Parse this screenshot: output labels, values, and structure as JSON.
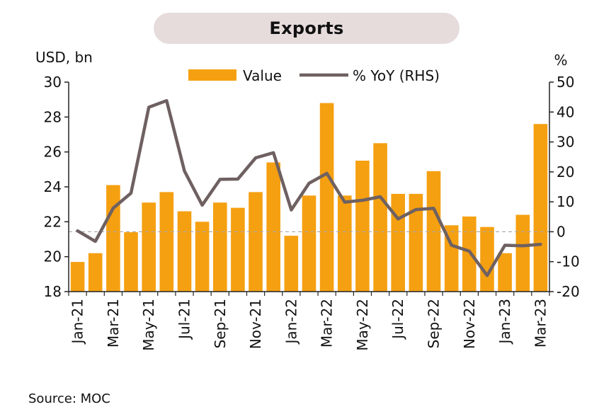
{
  "source": "Source: MOC",
  "colors": {
    "bar": "#f5a011",
    "line": "#6f6161",
    "zero_line": "#a8a8a8",
    "title_bg": "#e6dcdc"
  },
  "chart_data": {
    "type": "bar",
    "title": "Exports",
    "ylabel": "USD, bn",
    "y2label": "%",
    "ylim": [
      18,
      30
    ],
    "y2lim": [
      -20,
      50
    ],
    "yticks": [
      18,
      20,
      22,
      24,
      26,
      28,
      30
    ],
    "y2ticks": [
      -20,
      -10,
      0,
      10,
      20,
      30,
      40,
      50
    ],
    "legend_position": "top-center",
    "grid": false,
    "categories": [
      "Jan-21",
      "Feb-21",
      "Mar-21",
      "Apr-21",
      "May-21",
      "Jun-21",
      "Jul-21",
      "Aug-21",
      "Sep-21",
      "Oct-21",
      "Nov-21",
      "Dec-21",
      "Jan-22",
      "Feb-22",
      "Mar-22",
      "Apr-22",
      "May-22",
      "Jun-22",
      "Jul-22",
      "Aug-22",
      "Sep-22",
      "Oct-22",
      "Nov-22",
      "Dec-22",
      "Jan-23",
      "Feb-23",
      "Mar-23"
    ],
    "xtick_labels": [
      "Jan-21",
      "",
      "Mar-21",
      "",
      "May-21",
      "",
      "Jul-21",
      "",
      "Sep-21",
      "",
      "Nov-21",
      "",
      "Jan-22",
      "",
      "Mar-22",
      "",
      "May-22",
      "",
      "Jul-22",
      "",
      "Sep-22",
      "",
      "Nov-22",
      "",
      "Jan-23",
      "",
      "Mar-23"
    ],
    "series": [
      {
        "name": "Value",
        "type": "bar",
        "axis": "left",
        "values": [
          19.7,
          20.2,
          24.1,
          21.4,
          23.1,
          23.7,
          22.6,
          22.0,
          23.1,
          22.8,
          23.7,
          25.4,
          21.2,
          23.5,
          28.8,
          23.5,
          25.5,
          26.5,
          23.6,
          23.6,
          24.9,
          21.8,
          22.3,
          21.7,
          20.2,
          22.4,
          27.6
        ]
      },
      {
        "name": "% YoY (RHS)",
        "type": "line",
        "axis": "right",
        "values": [
          0.3,
          -3.2,
          7.9,
          12.9,
          41.6,
          43.8,
          20.3,
          8.9,
          17.5,
          17.6,
          24.7,
          26.4,
          7.3,
          16.2,
          19.5,
          9.9,
          10.5,
          11.7,
          4.3,
          7.4,
          7.8,
          -4.5,
          -6.5,
          -14.6,
          -4.5,
          -4.7,
          -4.2
        ]
      }
    ]
  }
}
